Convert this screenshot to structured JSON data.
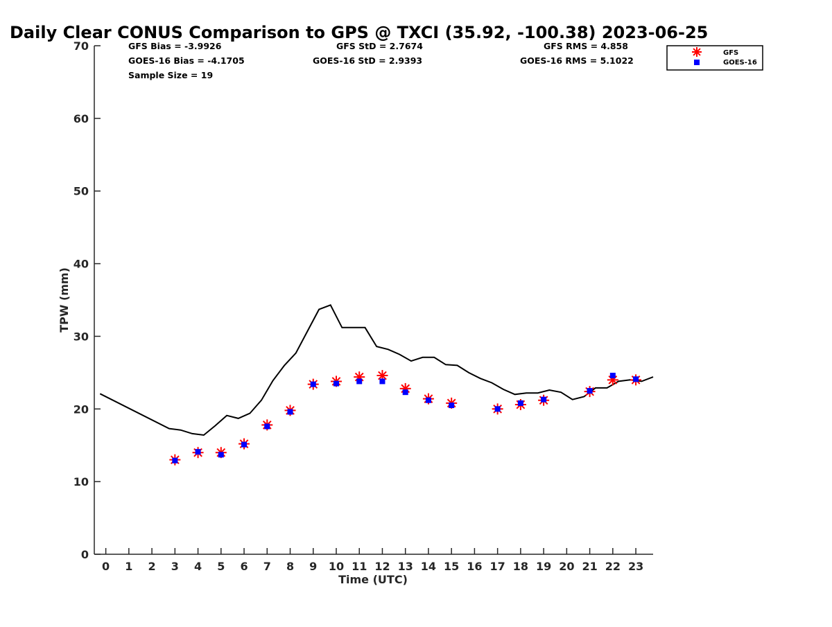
{
  "chart_data": {
    "type": "scatter",
    "title": "Daily Clear CONUS Comparison to GPS @ TXCI (35.92, -100.38) 2023-06-25",
    "xlabel": "Time (UTC)",
    "ylabel": "TPW (mm)",
    "xlim": [
      -0.5,
      23.75
    ],
    "ylim": [
      0,
      70
    ],
    "x_ticks": [
      0,
      1,
      2,
      3,
      4,
      5,
      6,
      7,
      8,
      9,
      10,
      11,
      12,
      13,
      14,
      15,
      16,
      17,
      18,
      19,
      20,
      21,
      22,
      23
    ],
    "y_ticks": [
      0,
      10,
      20,
      30,
      40,
      50,
      60,
      70
    ],
    "grid": false,
    "legend_position": "top-right",
    "stats": {
      "gfs_bias": "GFS Bias = -3.9926",
      "goes_bias": "GOES-16 Bias = -4.1705",
      "sample_size": "Sample Size = 19",
      "gfs_std": "GFS StD = 2.7674",
      "goes_std": "GOES-16 StD = 2.9393",
      "gfs_rms": "GFS RMS = 4.858",
      "goes_rms": "GOES-16 RMS = 5.1022"
    },
    "series": [
      {
        "name": "GFS",
        "marker": "asterisk",
        "color": "#ff0000",
        "points": [
          {
            "x": 3,
            "y": 13.0
          },
          {
            "x": 4,
            "y": 14.0
          },
          {
            "x": 5,
            "y": 14.0
          },
          {
            "x": 6,
            "y": 15.2
          },
          {
            "x": 7,
            "y": 17.8
          },
          {
            "x": 8,
            "y": 19.8
          },
          {
            "x": 9,
            "y": 23.4
          },
          {
            "x": 10,
            "y": 23.8
          },
          {
            "x": 11,
            "y": 24.4
          },
          {
            "x": 12,
            "y": 24.6
          },
          {
            "x": 13,
            "y": 22.8
          },
          {
            "x": 14,
            "y": 21.4
          },
          {
            "x": 15,
            "y": 20.8
          },
          {
            "x": 17,
            "y": 20.0
          },
          {
            "x": 18,
            "y": 20.6
          },
          {
            "x": 19,
            "y": 21.2
          },
          {
            "x": 21,
            "y": 22.4
          },
          {
            "x": 22,
            "y": 24.0
          },
          {
            "x": 23,
            "y": 24.0
          }
        ]
      },
      {
        "name": "GOES-16",
        "marker": "square",
        "color": "#0000ff",
        "points": [
          {
            "x": 3,
            "y": 12.9
          },
          {
            "x": 4,
            "y": 14.1
          },
          {
            "x": 5,
            "y": 13.7
          },
          {
            "x": 6,
            "y": 15.1
          },
          {
            "x": 7,
            "y": 17.6
          },
          {
            "x": 8,
            "y": 19.6
          },
          {
            "x": 9,
            "y": 23.4
          },
          {
            "x": 10,
            "y": 23.5
          },
          {
            "x": 11,
            "y": 23.8
          },
          {
            "x": 12,
            "y": 23.8
          },
          {
            "x": 13,
            "y": 22.3
          },
          {
            "x": 14,
            "y": 21.2
          },
          {
            "x": 15,
            "y": 20.5
          },
          {
            "x": 17,
            "y": 20.0
          },
          {
            "x": 18,
            "y": 20.8
          },
          {
            "x": 19,
            "y": 21.3
          },
          {
            "x": 21,
            "y": 22.5
          },
          {
            "x": 22,
            "y": 24.6
          },
          {
            "x": 23,
            "y": 24.1
          }
        ]
      }
    ],
    "reference_line": {
      "color": "#000000",
      "points": [
        [
          -0.25,
          22.1
        ],
        [
          2.75,
          17.3
        ],
        [
          3.25,
          17.1
        ],
        [
          3.75,
          16.6
        ],
        [
          4.25,
          16.4
        ],
        [
          4.75,
          17.7
        ],
        [
          5.25,
          19.1
        ],
        [
          5.75,
          18.7
        ],
        [
          6.25,
          19.4
        ],
        [
          6.75,
          21.2
        ],
        [
          7.25,
          23.9
        ],
        [
          7.75,
          26.0
        ],
        [
          8.25,
          27.7
        ],
        [
          8.75,
          30.7
        ],
        [
          9.25,
          33.7
        ],
        [
          9.75,
          34.3
        ],
        [
          10.25,
          31.2
        ],
        [
          11.25,
          31.2
        ],
        [
          11.75,
          28.6
        ],
        [
          12.25,
          28.2
        ],
        [
          12.75,
          27.5
        ],
        [
          13.25,
          26.6
        ],
        [
          13.75,
          27.1
        ],
        [
          14.25,
          27.1
        ],
        [
          14.75,
          26.1
        ],
        [
          15.25,
          26.0
        ],
        [
          15.75,
          25.0
        ],
        [
          16.25,
          24.2
        ],
        [
          16.75,
          23.6
        ],
        [
          17.25,
          22.7
        ],
        [
          17.75,
          22.0
        ],
        [
          18.25,
          22.2
        ],
        [
          18.75,
          22.2
        ],
        [
          19.25,
          22.6
        ],
        [
          19.75,
          22.3
        ],
        [
          20.25,
          21.3
        ],
        [
          20.75,
          21.7
        ],
        [
          21.25,
          22.9
        ],
        [
          21.75,
          22.9
        ],
        [
          22.25,
          23.8
        ],
        [
          22.75,
          24.0
        ],
        [
          23.25,
          23.8
        ],
        [
          23.75,
          24.4
        ]
      ]
    }
  }
}
